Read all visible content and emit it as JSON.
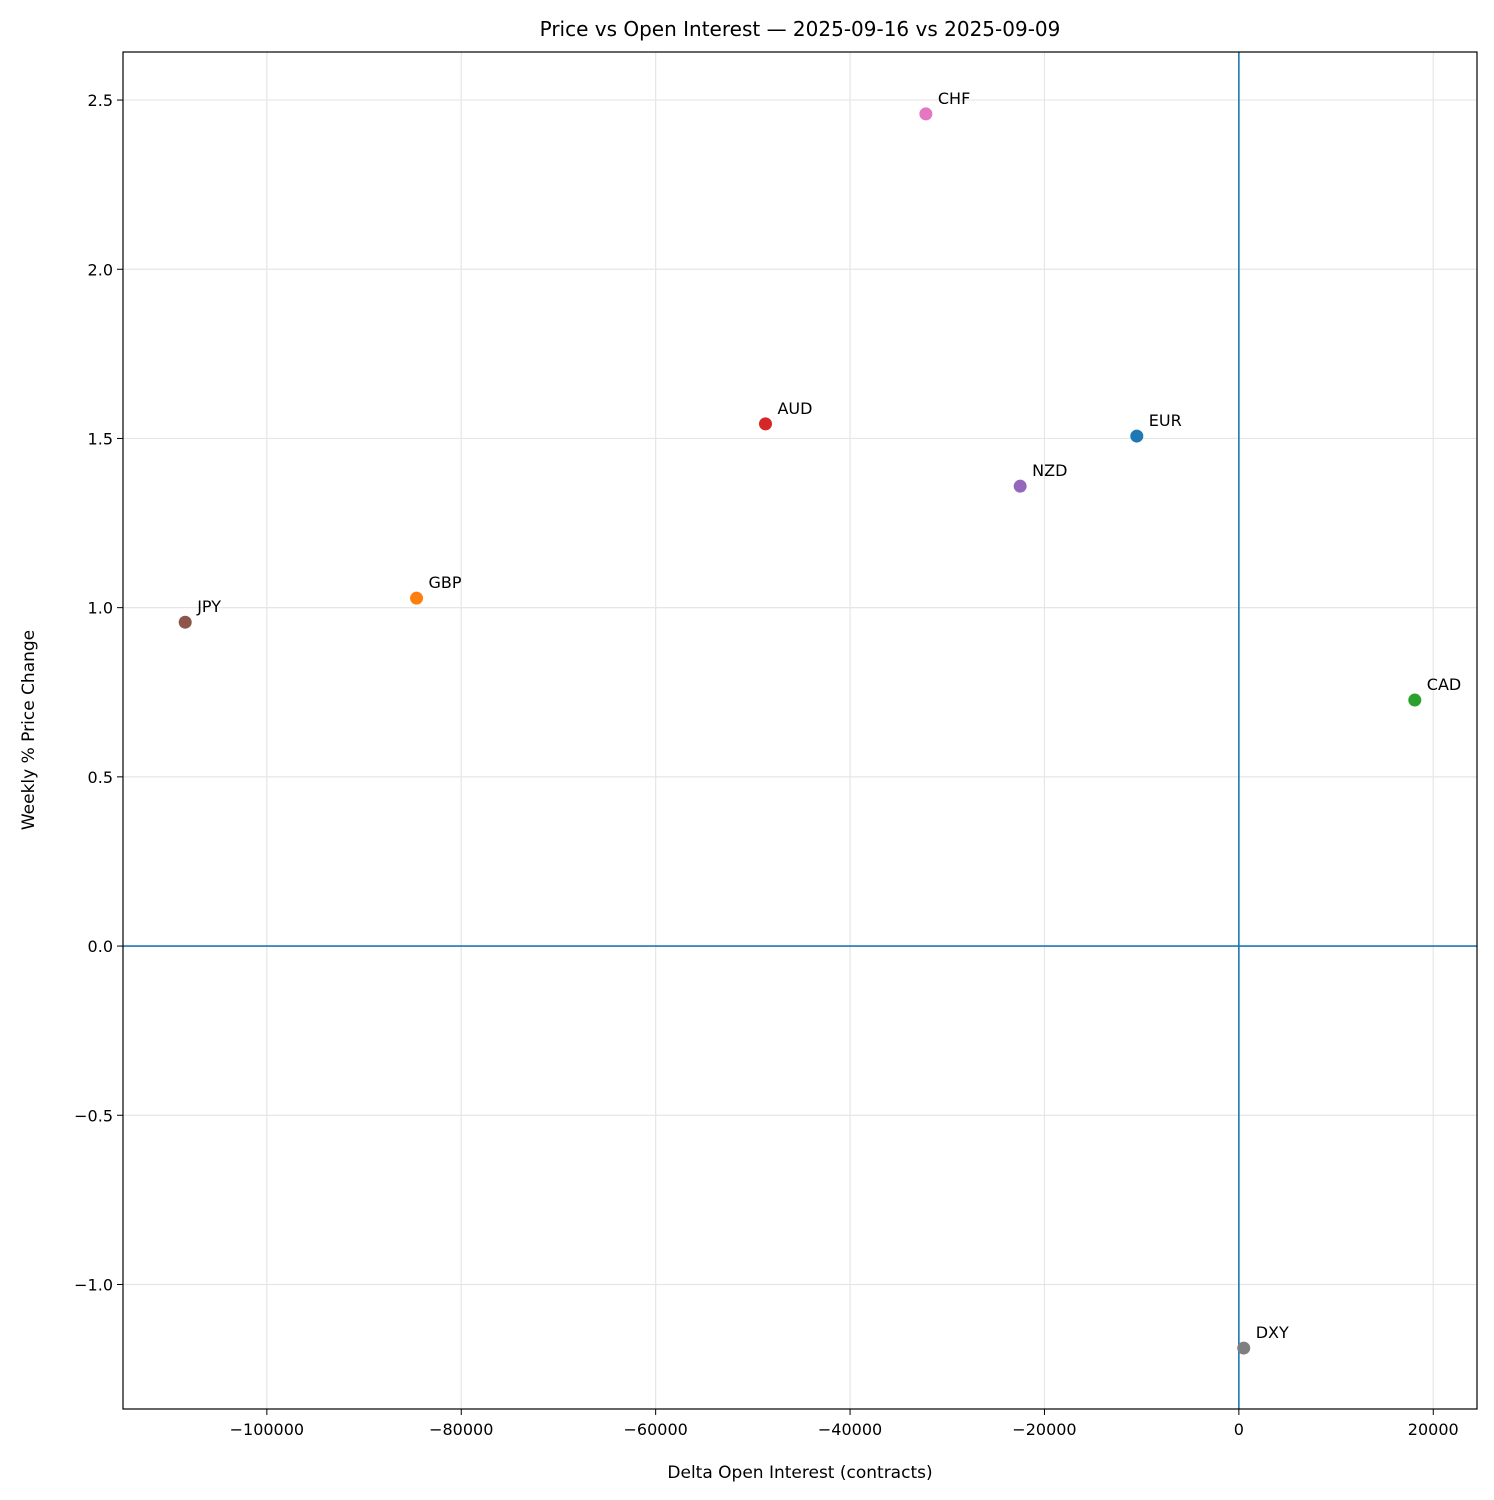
{
  "chart_data": {
    "type": "scatter",
    "title": "Price vs Open Interest — 2025-09-16 vs 2025-09-09",
    "xlabel": "Delta Open Interest (contracts)",
    "ylabel": "Weekly % Price Change",
    "xlim": [
      -114800,
      24500
    ],
    "ylim": [
      -1.368,
      2.642
    ],
    "xticks": [
      -100000,
      -80000,
      -60000,
      -40000,
      -20000,
      0,
      20000
    ],
    "xtick_labels": [
      "−100000",
      "−80000",
      "−60000",
      "−40000",
      "−20000",
      "0",
      "20000"
    ],
    "yticks": [
      -1.0,
      -0.5,
      0.0,
      0.5,
      1.0,
      1.5,
      2.0,
      2.5
    ],
    "ytick_labels": [
      "−1.0",
      "−0.5",
      "0.0",
      "0.5",
      "1.0",
      "1.5",
      "2.0",
      "2.5"
    ],
    "grid": true,
    "reference_lines": {
      "x": 0,
      "y": 0,
      "color": "#1f77b4"
    },
    "points": [
      {
        "label": "EUR",
        "x": -10500,
        "y": 1.507,
        "color": "#1f77b4"
      },
      {
        "label": "GBP",
        "x": -84600,
        "y": 1.028,
        "color": "#ff7f0e"
      },
      {
        "label": "CAD",
        "x": 18100,
        "y": 0.727,
        "color": "#2ca02c"
      },
      {
        "label": "AUD",
        "x": -48700,
        "y": 1.543,
        "color": "#d62728"
      },
      {
        "label": "NZD",
        "x": -22500,
        "y": 1.359,
        "color": "#9467bd"
      },
      {
        "label": "JPY",
        "x": -108400,
        "y": 0.957,
        "color": "#8c564b"
      },
      {
        "label": "CHF",
        "x": -32200,
        "y": 2.459,
        "color": "#e377c2"
      },
      {
        "label": "DXY",
        "x": 500,
        "y": -1.188,
        "color": "#7f7f7f"
      }
    ]
  }
}
